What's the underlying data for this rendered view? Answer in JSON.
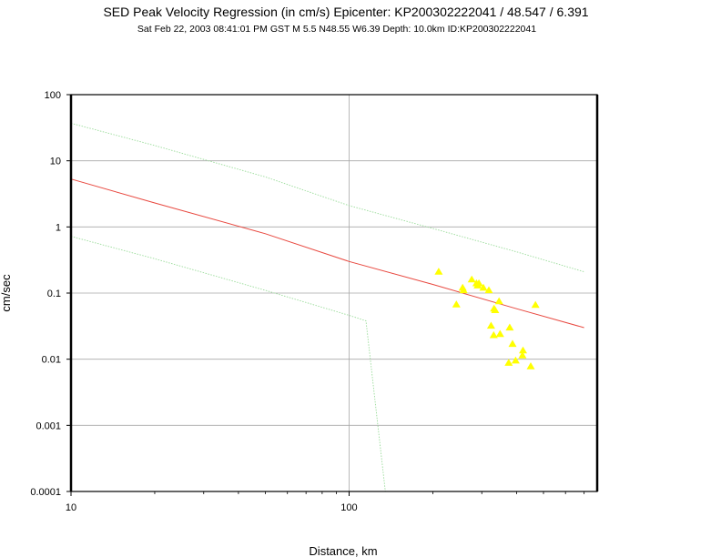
{
  "header": {
    "title": "SED Peak Velocity Regression (in cm/s) Epicenter: KP200302222041 / 48.547 / 6.391",
    "subtitle": "Sat Feb 22, 2003 08:41:01 PM GST   M 5.5   N48.55 W6.39   Depth: 10.0km   ID:KP200302222041"
  },
  "chart_data": {
    "type": "scatter",
    "xlabel": "Distance, km",
    "ylabel": "cm/sec",
    "xscale": "log",
    "yscale": "log",
    "xlim": [
      10,
      780
    ],
    "ylim": [
      0.0001,
      100
    ],
    "grid": true,
    "x_ticks": [
      {
        "value": 10,
        "label": "10"
      },
      {
        "value": 100,
        "label": "100"
      }
    ],
    "y_ticks": [
      {
        "value": 0.0001,
        "label": "0.0001"
      },
      {
        "value": 0.001,
        "label": "0.001"
      },
      {
        "value": 0.01,
        "label": "0.01"
      },
      {
        "value": 0.1,
        "label": "0.1"
      },
      {
        "value": 1,
        "label": "1"
      },
      {
        "value": 10,
        "label": "10"
      },
      {
        "value": 100,
        "label": "100"
      }
    ],
    "series": [
      {
        "kind": "line",
        "role": "regression",
        "color": "#e8483f",
        "x": [
          10,
          20,
          50,
          100,
          200,
          400,
          700
        ],
        "y": [
          5.3,
          2.3,
          0.79,
          0.3,
          0.135,
          0.058,
          0.03
        ]
      },
      {
        "kind": "line",
        "role": "upper-bound",
        "color": "#9adc9a",
        "x": [
          10,
          20,
          50,
          100,
          200,
          400,
          700
        ],
        "y": [
          37,
          17,
          5.7,
          2.1,
          0.95,
          0.42,
          0.21
        ]
      },
      {
        "kind": "line",
        "role": "lower-bound",
        "color": "#9adc9a",
        "x": [
          10,
          20,
          50,
          100,
          115,
          135
        ],
        "y": [
          0.72,
          0.33,
          0.11,
          0.046,
          0.038,
          0.0001
        ]
      },
      {
        "kind": "points",
        "role": "observations",
        "color": "#ffff00",
        "x": [
          210,
          243,
          256,
          258,
          276,
          287,
          290,
          293,
          304,
          318,
          324,
          332,
          331,
          335,
          349,
          346,
          387,
          378,
          375,
          397,
          420,
          422,
          468,
          450
        ],
        "y": [
          0.21,
          0.067,
          0.12,
          0.11,
          0.16,
          0.14,
          0.13,
          0.14,
          0.12,
          0.11,
          0.032,
          0.058,
          0.023,
          0.055,
          0.024,
          0.075,
          0.017,
          0.03,
          0.0088,
          0.0095,
          0.0114,
          0.0135,
          0.066,
          0.0078
        ]
      }
    ]
  }
}
